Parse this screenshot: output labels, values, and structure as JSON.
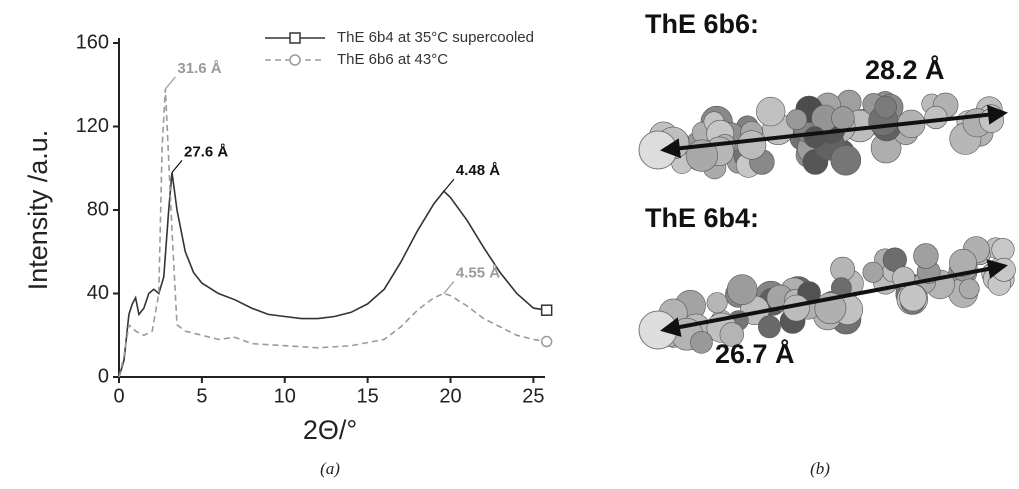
{
  "chart_data": {
    "type": "line",
    "xlabel": "2Θ/°",
    "ylabel": "Intensity /a.u.",
    "xlim": [
      0,
      25.7
    ],
    "ylim": [
      0,
      160
    ],
    "xticks": [
      0,
      5,
      10,
      15,
      20,
      25
    ],
    "yticks": [
      0,
      40,
      80,
      120,
      160
    ],
    "series": [
      {
        "name": "ThE 6b4 at 35°C supercooled",
        "color": "#333333",
        "dashed": false,
        "marker": "square",
        "x": [
          0,
          0.3,
          0.6,
          0.8,
          1.0,
          1.2,
          1.5,
          1.8,
          2.1,
          2.4,
          2.7,
          3.0,
          3.2,
          3.5,
          4,
          4.5,
          5,
          6,
          7,
          8,
          9,
          10,
          11,
          12,
          13,
          14,
          15,
          16,
          17,
          18,
          19,
          19.6,
          20,
          21,
          22,
          23,
          24,
          25,
          25.8
        ],
        "values": [
          0,
          8,
          30,
          35,
          38,
          30,
          33,
          40,
          42,
          40,
          48,
          80,
          98,
          80,
          60,
          50,
          45,
          40,
          37,
          33,
          30,
          29,
          28,
          28,
          29,
          31,
          35,
          42,
          55,
          70,
          83,
          89,
          86,
          75,
          62,
          50,
          40,
          33,
          32
        ]
      },
      {
        "name": "ThE 6b6 at 43°C",
        "color": "#9a9a9a",
        "dashed": true,
        "marker": "circle",
        "x": [
          0,
          0.3,
          0.6,
          1,
          1.5,
          2,
          2.4,
          2.6,
          2.8,
          3.2,
          3.5,
          4,
          5,
          6,
          7,
          8,
          10,
          12,
          14,
          16,
          17,
          18,
          19,
          19.6,
          20,
          21,
          22,
          23,
          24,
          25,
          25.8
        ],
        "values": [
          0,
          10,
          25,
          22,
          20,
          22,
          40,
          110,
          138,
          70,
          25,
          22,
          20,
          18,
          19,
          16,
          15,
          14,
          15,
          18,
          24,
          32,
          38,
          40,
          39,
          34,
          28,
          24,
          20,
          18,
          17
        ]
      }
    ],
    "annotations": [
      {
        "text": "31.6 Å",
        "x": 2.8,
        "y": 138,
        "color": "#9a9a9a"
      },
      {
        "text": "27.6 Å",
        "x": 3.2,
        "y": 98,
        "color": "#111111"
      },
      {
        "text": "4.48 Å",
        "x": 19.6,
        "y": 89,
        "color": "#111111"
      },
      {
        "text": "4.55 Å",
        "x": 19.6,
        "y": 40,
        "color": "#9a9a9a"
      }
    ]
  },
  "models": [
    {
      "title": "ThE 6b6:",
      "length": "28.2 Å"
    },
    {
      "title": "ThE 6b4:",
      "length": "26.7 Å"
    }
  ],
  "panel_labels": [
    "(a)",
    "(b)"
  ]
}
